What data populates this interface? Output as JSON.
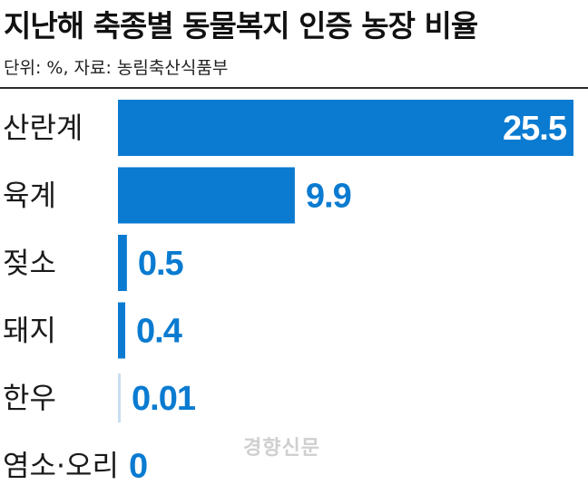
{
  "header": {
    "title": "지난해 축종별 동물복지 인증 농장 비율",
    "subtitle": "단위: %, 자료: 농림축산식품부"
  },
  "watermark": "경향신문",
  "colors": {
    "bar": "#0a7bd1",
    "label_inside": "#ffffff",
    "label_outside": "#0a7bd1",
    "category": "#1a1a1a"
  },
  "chart_data": {
    "type": "bar",
    "orientation": "horizontal",
    "title": "지난해 축종별 동물복지 인증 농장 비율",
    "categories": [
      "산란계",
      "육계",
      "젖소",
      "돼지",
      "한우",
      "염소·오리"
    ],
    "values": [
      25.5,
      9.9,
      0.5,
      0.4,
      0.01,
      0
    ],
    "value_labels": [
      "25.5",
      "9.9",
      "0.5",
      "0.4",
      "0.01",
      "0"
    ],
    "xlim": [
      0,
      25.5
    ],
    "grid": false,
    "legend": "none"
  }
}
